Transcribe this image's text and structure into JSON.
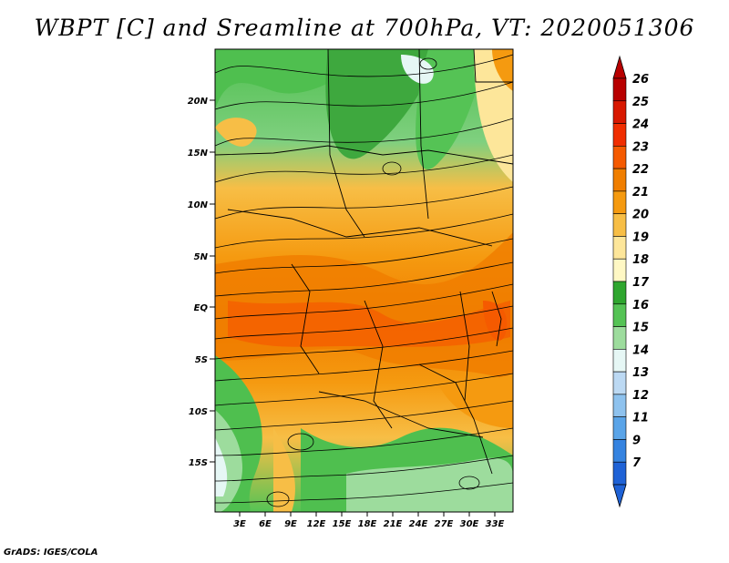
{
  "title": "WBPT [C] and Sreamline at 700hPa, VT: 2020051306",
  "credit": "GrADS: IGES/COLA",
  "map": {
    "lat_labels": [
      "20N",
      "15N",
      "10N",
      "5N",
      "EQ",
      "5S",
      "10S",
      "15S"
    ],
    "lon_labels": [
      "3E",
      "6E",
      "9E",
      "12E",
      "15E",
      "18E",
      "21E",
      "24E",
      "27E",
      "30E",
      "33E"
    ]
  },
  "colorbar": {
    "labels": [
      "26",
      "25",
      "24",
      "23",
      "22",
      "21",
      "20",
      "19",
      "18",
      "17",
      "16",
      "15",
      "14",
      "13",
      "12",
      "11",
      "9",
      "7"
    ],
    "colors": [
      "#b80000",
      "#d81800",
      "#f02e00",
      "#f55a00",
      "#f07e00",
      "#f59a10",
      "#f7be46",
      "#fde69a",
      "#fff8c4",
      "#2fa62f",
      "#55c355",
      "#9ddc9d",
      "#e6f7f5",
      "#bcd9f3",
      "#8ec2ee",
      "#5aa4e8",
      "#3583e0",
      "#1f62d6"
    ]
  }
}
